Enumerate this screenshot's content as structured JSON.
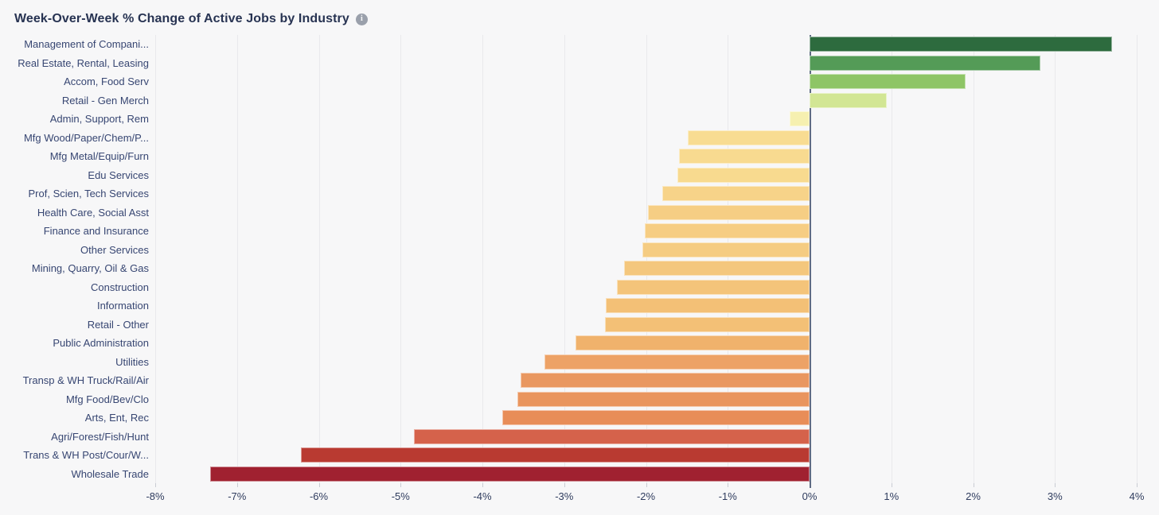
{
  "header": {
    "title": "Week-Over-Week % Change of Active Jobs by Industry"
  },
  "icons": {
    "info_glyph": "i"
  },
  "chart_data": {
    "type": "bar",
    "orientation": "horizontal",
    "title": "Week-Over-Week % Change of Active Jobs by Industry",
    "xlabel": "",
    "ylabel": "",
    "xlim": [
      -8,
      4
    ],
    "grid": true,
    "legend": false,
    "x_tick_values": [
      -8,
      -7,
      -6,
      -5,
      -4,
      -3,
      -2,
      -1,
      0,
      1,
      2,
      3,
      4
    ],
    "x_tick_labels": [
      "-8%",
      "-7%",
      "-6%",
      "-5%",
      "-4%",
      "-3%",
      "-2%",
      "-1%",
      "0%",
      "1%",
      "2%",
      "3%",
      "4%"
    ],
    "categories": [
      "Management of Compani...",
      "Real Estate, Rental, Leasing",
      "Accom, Food Serv",
      "Retail - Gen Merch",
      "Admin, Support, Rem",
      "Mfg Wood/Paper/Chem/P...",
      "Mfg Metal/Equip/Furn",
      "Edu Services",
      "Prof, Scien, Tech Services",
      "Health Care, Social Asst",
      "Finance and Insurance",
      "Other Services",
      "Mining, Quarry, Oil & Gas",
      "Construction",
      "Information",
      "Retail - Other",
      "Public Administration",
      "Utilities",
      "Transp & WH Truck/Rail/Air",
      "Mfg Food/Bev/Clo",
      "Arts, Ent, Rec",
      "Agri/Forest/Fish/Hunt",
      "Trans & WH Post/Cour/W...",
      "Wholesale Trade"
    ],
    "values": [
      3.7,
      2.82,
      1.91,
      0.94,
      -0.24,
      -1.49,
      -1.6,
      -1.62,
      -1.8,
      -1.98,
      -2.01,
      -2.04,
      -2.27,
      -2.36,
      -2.49,
      -2.5,
      -2.86,
      -3.24,
      -3.53,
      -3.57,
      -3.76,
      -4.84,
      -6.22,
      -7.33
    ],
    "bar_colors": [
      "#2d6b3e",
      "#549b57",
      "#8ec566",
      "#d2e694",
      "#f6f0b0",
      "#f8dc92",
      "#f8da90",
      "#f8da8f",
      "#f7d389",
      "#f6ce84",
      "#f6cd83",
      "#f5cc82",
      "#f4c77d",
      "#f4c47a",
      "#f3c076",
      "#f3c076",
      "#f0b26c",
      "#eda266",
      "#e99760",
      "#e9955e",
      "#e88d58",
      "#d5624b",
      "#b93a31",
      "#a02130"
    ]
  },
  "colors": {
    "background": "#f7f7f8",
    "title_text": "#273352",
    "label_text": "#374672",
    "tick_text": "#2f3c5e",
    "gridline": "#e9e9ec",
    "zero_line": "#5f6b84",
    "info_icon_bg": "#9aa0ab",
    "info_icon_glyph": "#f7f7f8"
  }
}
